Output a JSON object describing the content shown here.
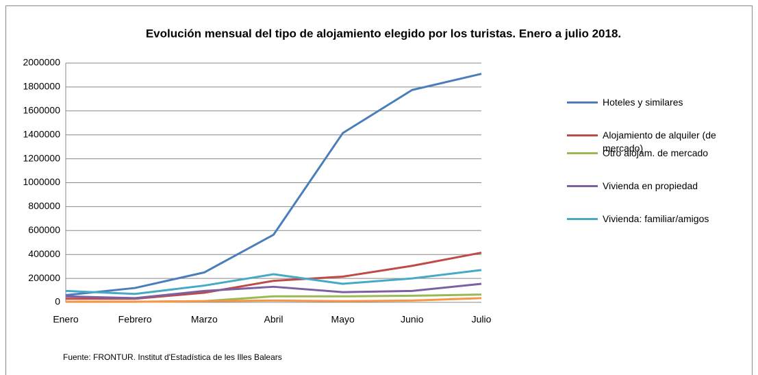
{
  "chart_data": {
    "type": "line",
    "title": "Evolución mensual del tipo de alojamiento elegido por los turistas. Enero a julio 2018.",
    "categories": [
      "Enero",
      "Febrero",
      "Marzo",
      "Abril",
      "Mayo",
      "Junio",
      "Julio"
    ],
    "series": [
      {
        "name": "Hoteles y similares",
        "color": "#4a7ebb",
        "values": [
          60000,
          120000,
          250000,
          565000,
          1415000,
          1775000,
          1910000
        ]
      },
      {
        "name": "Alojamiento de alquiler (de mercado)",
        "color": "#be4b48",
        "values": [
          30000,
          30000,
          80000,
          180000,
          215000,
          305000,
          415000
        ]
      },
      {
        "name": "Otro alojam. de mercado",
        "color": "#98b954",
        "values": [
          5000,
          5000,
          10000,
          50000,
          50000,
          55000,
          65000
        ]
      },
      {
        "name": "Vivienda en propiedad",
        "color": "#7d60a0",
        "values": [
          50000,
          35000,
          95000,
          130000,
          85000,
          95000,
          155000
        ]
      },
      {
        "name": "Vivienda: familiar/amigos",
        "color": "#46aac5",
        "values": [
          95000,
          70000,
          140000,
          235000,
          155000,
          200000,
          270000
        ]
      },
      {
        "color": "#f79646",
        "values": [
          5000,
          5000,
          10000,
          15000,
          10000,
          15000,
          35000
        ]
      }
    ],
    "ylim": [
      0,
      2000000
    ],
    "yticks": [
      0,
      200000,
      400000,
      600000,
      800000,
      1000000,
      1200000,
      1400000,
      1600000,
      1800000,
      2000000
    ],
    "grid": true,
    "legend": "right",
    "source": "Fuente: FRONTUR.  Institut d'Estadística de les Illes Balears"
  }
}
